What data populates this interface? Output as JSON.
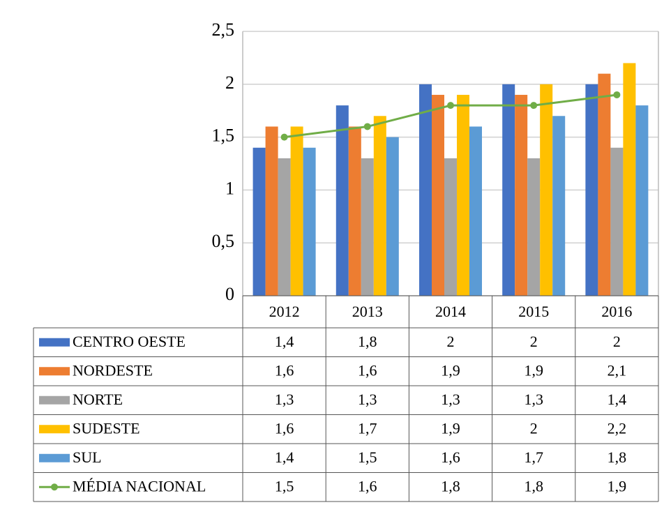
{
  "chart_data": {
    "type": "bar",
    "categories": [
      "2012",
      "2013",
      "2014",
      "2015",
      "2016"
    ],
    "ylim": [
      0,
      2.5
    ],
    "yticks": [
      0,
      {
        "value": 0.5,
        "label": "0,5"
      },
      1,
      {
        "value": 1.5,
        "label": "1,5"
      },
      2,
      {
        "value": 2.5,
        "label": "2,5"
      }
    ],
    "grid": true,
    "series": [
      {
        "name": "CENTRO OESTE",
        "color": "#4472c4",
        "values": [
          1.4,
          1.8,
          2,
          2,
          2
        ],
        "value_labels": [
          "1,4",
          "1,8",
          "2",
          "2",
          "2"
        ]
      },
      {
        "name": "NORDESTE",
        "color": "#ed7d31",
        "values": [
          1.6,
          1.6,
          1.9,
          1.9,
          2.1
        ],
        "value_labels": [
          "1,6",
          "1,6",
          "1,9",
          "1,9",
          "2,1"
        ]
      },
      {
        "name": "NORTE",
        "color": "#a5a5a5",
        "values": [
          1.3,
          1.3,
          1.3,
          1.3,
          1.4
        ],
        "value_labels": [
          "1,3",
          "1,3",
          "1,3",
          "1,3",
          "1,4"
        ]
      },
      {
        "name": "SUDESTE",
        "color": "#ffc000",
        "values": [
          1.6,
          1.7,
          1.9,
          2,
          2.2
        ],
        "value_labels": [
          "1,6",
          "1,7",
          "1,9",
          "2",
          "2,2"
        ]
      },
      {
        "name": "SUL",
        "color": "#5b9bd5",
        "values": [
          1.4,
          1.5,
          1.6,
          1.7,
          1.8
        ],
        "value_labels": [
          "1,4",
          "1,5",
          "1,6",
          "1,7",
          "1,8"
        ]
      },
      {
        "name": "MÉDIA NACIONAL",
        "type": "line",
        "color": "#70ad47",
        "values": [
          1.5,
          1.6,
          1.8,
          1.8,
          1.9
        ],
        "value_labels": [
          "1,5",
          "1,6",
          "1,8",
          "1,8",
          "1,9"
        ]
      }
    ]
  }
}
